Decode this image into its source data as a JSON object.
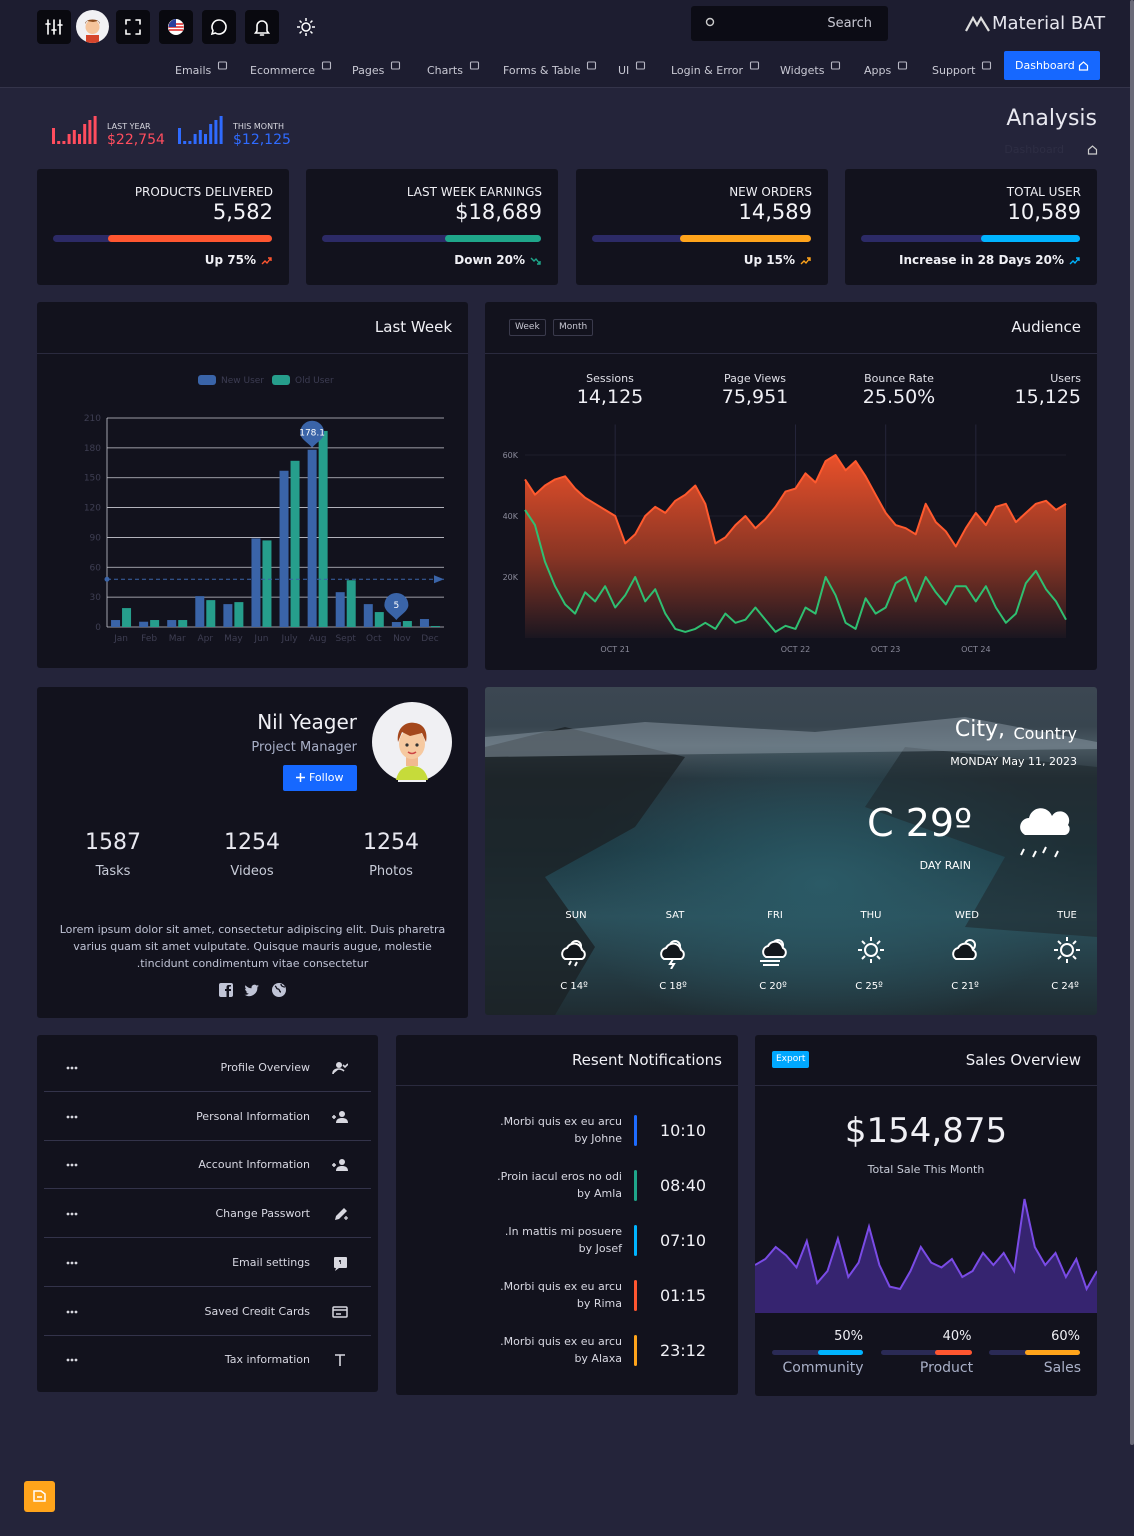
{
  "header": {
    "brand": "Material BAT",
    "search": "Search",
    "nav": [
      "Emails",
      "Ecommerce",
      "Pages",
      "Charts",
      "Forms & Table",
      "UI",
      "Login & Error",
      "Widgets",
      "Apps",
      "Support"
    ],
    "active": "Dashboard"
  },
  "summary": [
    {
      "label": "LAST YEAR",
      "value": "$22,754",
      "color": "#ff4d5e"
    },
    {
      "label": "THIS MONTH",
      "value": "$12,125",
      "color": "#2f6bff"
    }
  ],
  "page": {
    "title": "Analysis",
    "breadcrumb": "Dashboard"
  },
  "stats": [
    {
      "title": "PRODUCTS DELIVERED",
      "value": "5,582",
      "progress": 75,
      "color": "#ff5630",
      "footer": "Up 75%",
      "trend": "up"
    },
    {
      "title": "LAST WEEK EARNINGS",
      "value": "$18,689",
      "progress": 44,
      "color": "#1fa68a",
      "footer": "Down 20%",
      "trend": "down"
    },
    {
      "title": "NEW ORDERS",
      "value": "14,589",
      "progress": 60,
      "color": "#ffa41b",
      "footer": "Up 15%",
      "trend": "up"
    },
    {
      "title": "TOTAL USER",
      "value": "10,589",
      "progress": 45,
      "color": "#00b4ff",
      "footer": "Increase in 28 Days 20%",
      "trend": "up"
    }
  ],
  "last_week": {
    "title": "Last Week",
    "chart": {
      "type": "bar",
      "categories": [
        "Jan",
        "Feb",
        "Mar",
        "Apr",
        "May",
        "Jun",
        "July",
        "Aug",
        "Sept",
        "Oct",
        "Nov",
        "Dec"
      ],
      "series": [
        {
          "name": "New User",
          "color": "#3a64a8",
          "values": [
            7,
            5.3,
            7,
            31,
            23,
            89,
            157,
            178.1,
            35,
            23,
            5,
            8
          ]
        },
        {
          "name": "Old User",
          "color": "#269e8c",
          "values": [
            19,
            7,
            7,
            27,
            25,
            87,
            167,
            197,
            47,
            15,
            6,
            1
          ]
        }
      ],
      "ylim": [
        0,
        210
      ],
      "yticks": [
        0,
        30,
        60,
        90,
        120,
        150,
        180,
        210
      ],
      "grid": true,
      "mark_line": 48
    }
  },
  "audience": {
    "title": "Audience",
    "tabs": [
      "Week",
      "Month"
    ],
    "metrics": [
      {
        "label": "Sessions",
        "value": "14,125"
      },
      {
        "label": "Page Views",
        "value": "75,951"
      },
      {
        "label": "Bounce Rate",
        "value": "25.50%"
      },
      {
        "label": "Users",
        "value": "15,125"
      }
    ],
    "chart": {
      "type": "area",
      "series": [
        {
          "color": "#ff5a2e",
          "values": [
            52000,
            47000,
            50000,
            52000,
            53000,
            49000,
            46000,
            44000,
            42000,
            40000,
            31000,
            34000,
            40000,
            43000,
            41000,
            45000,
            47000,
            50000,
            44000,
            31000,
            33000,
            37000,
            40000,
            36000,
            39000,
            43000,
            48000,
            49000,
            54000,
            51000,
            58000,
            60000,
            55000,
            58000,
            53000,
            47000,
            41000,
            37000,
            36000,
            34000,
            44000,
            38000,
            35000,
            30000,
            36000,
            41000,
            37000,
            43000,
            44000,
            38000,
            41000,
            44000,
            45000,
            42000,
            44000
          ]
        },
        {
          "color": "#2fbf71",
          "values": [
            42000,
            37000,
            25000,
            17000,
            11000,
            8000,
            15000,
            12000,
            17000,
            10000,
            14000,
            20000,
            12000,
            16000,
            8000,
            3000,
            2000,
            3000,
            5000,
            3000,
            8000,
            5000,
            6000,
            10000,
            6000,
            2000,
            4000,
            3000,
            10000,
            8000,
            20000,
            14000,
            5000,
            3000,
            13000,
            8000,
            10000,
            18000,
            20000,
            12000,
            20000,
            15000,
            11000,
            17000,
            17000,
            12000,
            17000,
            10000,
            5000,
            8000,
            18000,
            22000,
            16000,
            12000,
            6000
          ]
        }
      ],
      "xlim": [
        0,
        54
      ],
      "xticks": [
        {
          "value": 9,
          "label": "OCT 21"
        },
        {
          "value": 27,
          "label": "OCT 22"
        },
        {
          "value": 36,
          "label": "OCT 23"
        },
        {
          "value": 45,
          "label": "OCT 24"
        }
      ],
      "ylim": [
        0,
        70000
      ],
      "yticks": [
        {
          "value": 20000,
          "label": "20K"
        },
        {
          "value": 40000,
          "label": "40K"
        },
        {
          "value": 60000,
          "label": "60K"
        }
      ]
    }
  },
  "profile": {
    "name": "Nil Yeager",
    "role": "Project Manager",
    "follow": "Follow",
    "stats": [
      {
        "value": "1587",
        "label": "Tasks"
      },
      {
        "value": "1254",
        "label": "Videos"
      },
      {
        "value": "1254",
        "label": "Photos"
      }
    ],
    "bio": "Lorem ipsum dolor sit amet, consectetur adipiscing elit. Duis pharetra varius quam sit amet vulputate. Quisque mauris augue, molestie .tincidunt condimentum vitae consectetur"
  },
  "weather": {
    "city": "City,",
    "country": "Country",
    "date": "MONDAY May 11, 2023",
    "temp": "C 29º",
    "condition": "DAY RAIN",
    "days": [
      {
        "day": "SUN",
        "temp": "C 14º"
      },
      {
        "day": "SAT",
        "temp": "C 18º"
      },
      {
        "day": "FRI",
        "temp": "C 20º"
      },
      {
        "day": "THU",
        "temp": "C 25º"
      },
      {
        "day": "WED",
        "temp": "C 21º"
      },
      {
        "day": "TUE",
        "temp": "C 24º"
      }
    ]
  },
  "settings": [
    "Profile Overview",
    "Personal Information",
    "Account Information",
    "Change Passwort",
    "Email settings",
    "Saved Credit Cards",
    "Tax information"
  ],
  "notifications": {
    "title": "Resent Notifications",
    "items": [
      {
        "text": ".Morbi quis ex eu arcu",
        "by": "by Johne",
        "time": "10:10",
        "color": "#1e6cff"
      },
      {
        "text": ".Proin iacul eros no odi",
        "by": "by Amla",
        "time": "08:40",
        "color": "#1fa68a"
      },
      {
        "text": ".In mattis mi posuere",
        "by": "by Josef",
        "time": "07:10",
        "color": "#00b4ff"
      },
      {
        "text": ".Morbi quis ex eu arcu",
        "by": "by Rima",
        "time": "01:15",
        "color": "#ff5630"
      },
      {
        "text": ".Morbi quis ex eu arcu",
        "by": "by Alaxa",
        "time": "23:12",
        "color": "#ffa41b"
      }
    ]
  },
  "sales": {
    "export": "Export",
    "title": "Sales Overview",
    "amount": "$154,875",
    "subtitle": "Total Sale This Month",
    "sparkline": [
      40,
      45,
      55,
      48,
      38,
      60,
      25,
      35,
      62,
      30,
      42,
      72,
      40,
      22,
      20,
      35,
      55,
      42,
      38,
      45,
      30,
      35,
      50,
      40,
      50,
      35,
      95,
      55,
      40,
      50,
      30,
      45,
      20,
      35
    ],
    "progress": [
      {
        "label": "50%",
        "value": 50,
        "name": "Community",
        "color": "#00b4ff"
      },
      {
        "label": "40%",
        "value": 40,
        "name": "Product",
        "color": "#ff5630"
      },
      {
        "label": "60%",
        "value": 60,
        "name": "Sales",
        "color": "#ffa41b"
      }
    ]
  }
}
